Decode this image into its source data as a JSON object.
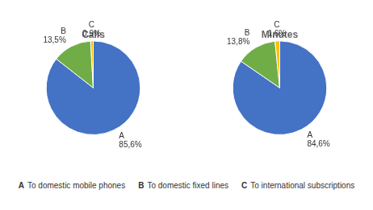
{
  "chart_data": [
    {
      "type": "pie",
      "title": "Calls",
      "categories": [
        "A",
        "B",
        "C"
      ],
      "values": [
        85.6,
        13.5,
        0.9
      ],
      "value_labels": [
        "85,6%",
        "13,5%",
        "0,9%"
      ],
      "data_labels": true,
      "colors": [
        "#4472C4",
        "#70AD47",
        "#FFC000"
      ]
    },
    {
      "type": "pie",
      "title": "Minutes",
      "categories": [
        "A",
        "B",
        "C"
      ],
      "values": [
        84.6,
        13.8,
        1.6
      ],
      "value_labels": [
        "84,6%",
        "13,8%",
        "1,6%"
      ],
      "data_labels": true,
      "colors": [
        "#4472C4",
        "#70AD47",
        "#FFC000"
      ]
    }
  ],
  "annotations": [
    "A To domestic mobile phones",
    "B To domestic fixed lines",
    "C To international subscriptions"
  ]
}
